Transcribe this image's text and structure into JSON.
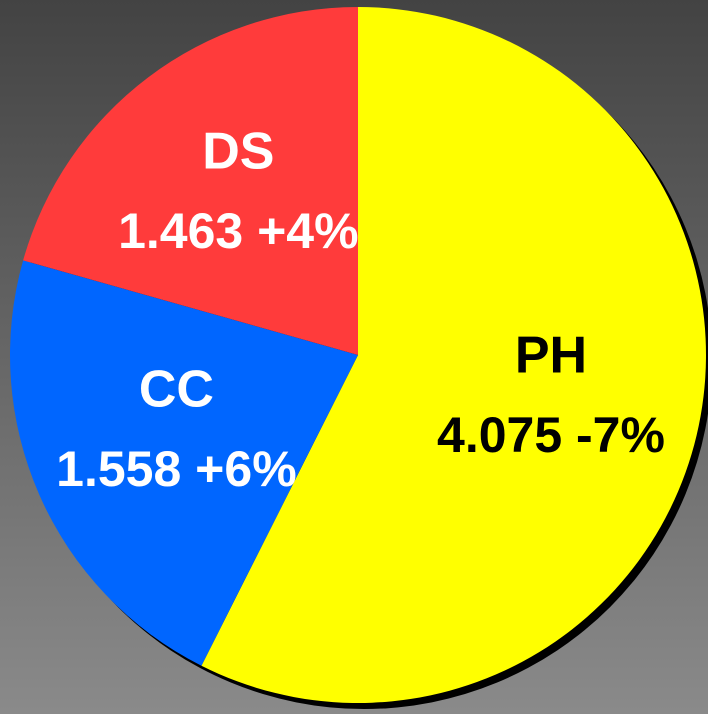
{
  "chart_data": {
    "type": "pie",
    "categories": [
      "PH",
      "CC",
      "DS"
    ],
    "values": [
      4.075,
      1.558,
      1.463
    ],
    "value_labels": [
      "4.075 -7%",
      "1.558 +6%",
      "1.463 +4%"
    ],
    "colors": [
      "#ffff00",
      "#0066ff",
      "#ff3b3b"
    ]
  }
}
